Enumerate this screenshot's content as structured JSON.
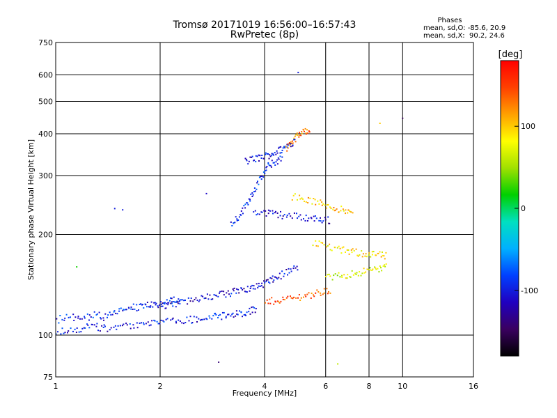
{
  "chart_data": {
    "type": "scatter",
    "title": "Tromsø 20171019 16:56:00–16:57:43",
    "subtitle": "RwPretec (8p)",
    "xlabel": "Frequency [MHz]",
    "ylabel": "Stationary phase Virtual Height [km]",
    "x_scale": "log",
    "y_scale": "log",
    "xlim": [
      1,
      16
    ],
    "ylim": [
      75,
      750
    ],
    "x_ticks": [
      1,
      2,
      4,
      6,
      8,
      10,
      16
    ],
    "y_ticks": [
      75,
      100,
      200,
      300,
      400,
      500,
      600,
      750
    ],
    "grid": true,
    "info": {
      "heading": "Phases",
      "line1": "mean, sd,O: -85.6, 20.9",
      "line2": "mean, sd,X:  90.2, 24.6"
    },
    "colorbar": {
      "label": "[deg]",
      "range": [
        -180,
        180
      ],
      "ticks": [
        100,
        0,
        -100
      ],
      "tick_labels": [
        "100",
        "0",
        "-100"
      ],
      "stops": [
        "#000000",
        "#3a0060",
        "#2000c0",
        "#0040ff",
        "#00b0ff",
        "#00e0c0",
        "#00d000",
        "#a0e000",
        "#ffff00",
        "#ffa000",
        "#ff4000",
        "#ff0000"
      ]
    },
    "series": [
      {
        "traces": [
          {
            "f": [
              1.0,
              1.1,
              1.2,
              1.3,
              1.4,
              1.55,
              1.7,
              1.85,
              2.0,
              2.2,
              2.4,
              2.6,
              2.8,
              3.0,
              3.2,
              3.4,
              3.6,
              3.8
            ],
            "h": [
              103,
              104,
              105,
              106,
              105,
              106,
              107,
              108,
              109,
              110,
              111,
              112,
              113,
              114,
              115,
              116,
              118,
              120
            ],
            "phase": -100
          },
          {
            "f": [
              1.0,
              1.1,
              1.2,
              1.3,
              1.4,
              1.5,
              1.6,
              1.7,
              1.8,
              1.9,
              2.0,
              2.1,
              2.2,
              2.3
            ],
            "h": [
              111,
              113,
              112,
              115,
              113,
              118,
              120,
              121,
              122,
              123,
              124,
              125,
              127,
              128
            ],
            "phase": -95
          },
          {
            "f": [
              2.0,
              2.2,
              2.4,
              2.6,
              2.8,
              3.0,
              3.2,
              3.4,
              3.6,
              3.8,
              4.0,
              4.2,
              4.4,
              4.7,
              5.0
            ],
            "h": [
              122,
              124,
              126,
              128,
              130,
              132,
              134,
              136,
              138,
              140,
              143,
              146,
              150,
              155,
              160
            ],
            "phase": -110
          },
          {
            "f": [
              3.5,
              3.7,
              3.9,
              4.1,
              4.3,
              4.5,
              4.7,
              4.9
            ],
            "h": [
              330,
              335,
              340,
              345,
              352,
              360,
              370,
              382
            ],
            "phase": -100
          },
          {
            "f": [
              3.2,
              3.35,
              3.5,
              3.65,
              3.8,
              3.95,
              4.1,
              4.3,
              4.5
            ],
            "h": [
              215,
              225,
              240,
              260,
              280,
              300,
              320,
              330,
              338
            ],
            "phase": -95
          },
          {
            "f": [
              3.7,
              4.0,
              4.3,
              4.6,
              5.0,
              5.4,
              5.8,
              6.2
            ],
            "h": [
              235,
              232,
              230,
              228,
              226,
              224,
              222,
              220
            ],
            "phase": -110
          },
          {
            "f": [
              4.6,
              4.8,
              5.0,
              5.2,
              5.4
            ],
            "h": [
              360,
              380,
              395,
              405,
              415
            ],
            "phase": 130
          },
          {
            "f": [
              4.8,
              5.2,
              5.6,
              6.0,
              6.4,
              6.8,
              7.2
            ],
            "h": [
              260,
              255,
              250,
              245,
              240,
              235,
              230
            ],
            "phase": 100
          },
          {
            "f": [
              4.0,
              4.3,
              4.6,
              5.0,
              5.4,
              5.8,
              6.2
            ],
            "h": [
              125,
              127,
              128,
              130,
              132,
              134,
              136
            ],
            "phase": 140
          },
          {
            "f": [
              5.5,
              6.0,
              6.5,
              7.0,
              7.5,
              8.0,
              8.5,
              9.0
            ],
            "h": [
              190,
              185,
              180,
              178,
              176,
              175,
              174,
              172
            ],
            "phase": 90
          },
          {
            "f": [
              6.0,
              6.5,
              7.0,
              7.5,
              8.0,
              8.5,
              9.0
            ],
            "h": [
              148,
              150,
              152,
              154,
              156,
              158,
              160
            ],
            "phase": 70
          }
        ]
      }
    ],
    "outliers": [
      {
        "f": 1.48,
        "h": 239,
        "phase": -100
      },
      {
        "f": 1.56,
        "h": 237,
        "phase": -100
      },
      {
        "f": 1.15,
        "h": 160,
        "phase": 20
      },
      {
        "f": 2.72,
        "h": 265,
        "phase": -110
      },
      {
        "f": 2.95,
        "h": 83,
        "phase": -140
      },
      {
        "f": 5.0,
        "h": 610,
        "phase": -100
      },
      {
        "f": 10.0,
        "h": 445,
        "phase": -150
      },
      {
        "f": 6.5,
        "h": 82,
        "phase": 60
      },
      {
        "f": 8.6,
        "h": 430,
        "phase": 100
      }
    ]
  }
}
